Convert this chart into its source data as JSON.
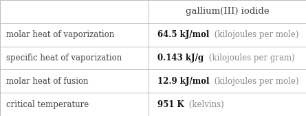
{
  "title": "gallium(III) iodide",
  "rows": [
    {
      "label": "molar heat of vaporization",
      "value_bold": "64.5 kJ/mol",
      "value_light": " (kilojoules per mole)"
    },
    {
      "label": "specific heat of vaporization",
      "value_bold": "0.143 kJ/g",
      "value_light": " (kilojoules per gram)"
    },
    {
      "label": "molar heat of fusion",
      "value_bold": "12.9 kJ/mol",
      "value_light": " (kilojoules per mole)"
    },
    {
      "label": "critical temperature",
      "value_bold": "951 K",
      "value_light": " (kelvins)"
    }
  ],
  "col_split": 0.485,
  "background_color": "#ffffff",
  "border_color": "#bbbbbb",
  "text_color_label": "#404040",
  "text_color_bold": "#111111",
  "text_color_light": "#888888",
  "font_size_title": 9.5,
  "font_size_body": 8.5
}
